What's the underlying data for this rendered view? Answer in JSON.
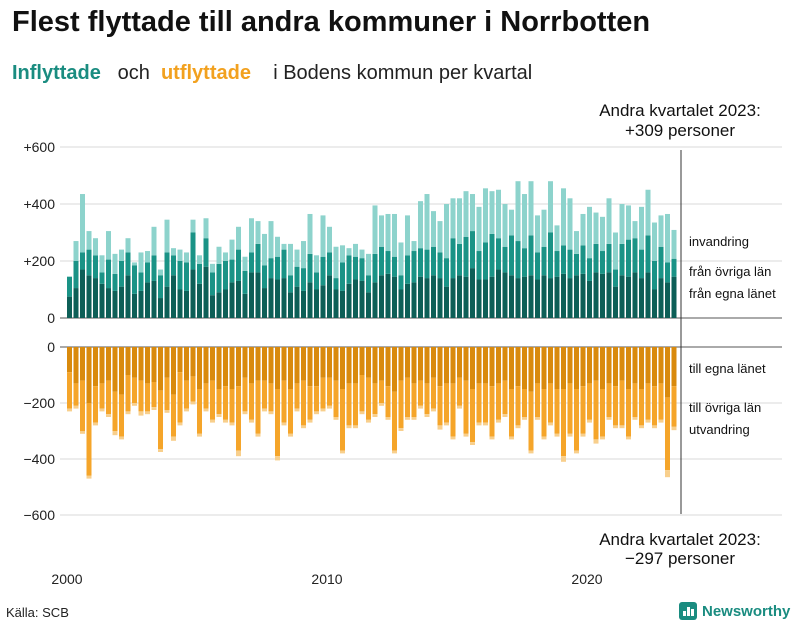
{
  "title": "Flest flyttade till andra kommuner i Norrbotten",
  "subtitle": {
    "in_word": "Inflyttade",
    "and_word": "och",
    "out_word": "utflyttade",
    "rest": "i Bodens  kommun  per  kvartal"
  },
  "source": "Källa: SCB",
  "brand": "Newsworthy",
  "colors": {
    "inflow_local": "#0d5f57",
    "inflow_other": "#1a9386",
    "inflow_immig": "#8dd3cc",
    "outflow_local": "#d98a0d",
    "outflow_other": "#f5a52a",
    "outflow_emig": "#f8cf8c"
  },
  "chart_data": {
    "type": "bar",
    "stacked": true,
    "x_tick_labels": [
      "2000",
      "2010",
      "2020"
    ],
    "first_year": 2000,
    "quarters": 94,
    "top_panel": {
      "y_tick_labels": [
        "+600",
        "+400",
        "+200",
        "0"
      ],
      "ylim": [
        0,
        600
      ],
      "annotation_line1": "Andra kvartalet 2023:",
      "annotation_line2": "+309 personer",
      "series_labels": [
        "invandring",
        "från övriga län",
        "från egna länet"
      ],
      "from_own_county": [
        75,
        105,
        170,
        150,
        140,
        120,
        105,
        95,
        110,
        150,
        85,
        95,
        125,
        130,
        70,
        110,
        150,
        100,
        95,
        170,
        120,
        180,
        80,
        90,
        100,
        125,
        130,
        85,
        160,
        160,
        105,
        140,
        135,
        140,
        90,
        110,
        95,
        125,
        100,
        115,
        150,
        100,
        95,
        120,
        135,
        130,
        90,
        125,
        150,
        155,
        145,
        100,
        120,
        125,
        145,
        140,
        150,
        140,
        110,
        140,
        150,
        145,
        175,
        135,
        135,
        145,
        170,
        160,
        150,
        140,
        145,
        150,
        135,
        150,
        140,
        145,
        155,
        140,
        150,
        155,
        130,
        160,
        155,
        160,
        110,
        150,
        145,
        160,
        140,
        160,
        100,
        140,
        125,
        145
      ],
      "from_other_counties": [
        70,
        95,
        60,
        90,
        80,
        40,
        100,
        60,
        90,
        80,
        100,
        65,
        70,
        90,
        80,
        120,
        70,
        100,
        100,
        130,
        70,
        100,
        80,
        100,
        100,
        80,
        110,
        80,
        70,
        100,
        80,
        70,
        80,
        100,
        60,
        70,
        80,
        100,
        60,
        100,
        80,
        40,
        100,
        100,
        80,
        80,
        60,
        100,
        100,
        80,
        70,
        50,
        100,
        110,
        100,
        100,
        100,
        90,
        100,
        140,
        110,
        140,
        130,
        100,
        130,
        150,
        110,
        90,
        140,
        130,
        100,
        140,
        95,
        100,
        160,
        90,
        100,
        100,
        75,
        100,
        80,
        100,
        80,
        100,
        60,
        110,
        130,
        120,
        100,
        130,
        100,
        110,
        70,
        63
      ],
      "immigration": [
        0,
        70,
        205,
        65,
        60,
        60,
        100,
        70,
        40,
        50,
        10,
        70,
        40,
        100,
        20,
        115,
        25,
        40,
        35,
        45,
        30,
        70,
        30,
        60,
        30,
        70,
        80,
        50,
        120,
        80,
        110,
        130,
        70,
        20,
        110,
        60,
        95,
        140,
        60,
        145,
        90,
        110,
        60,
        25,
        45,
        30,
        75,
        170,
        110,
        130,
        150,
        115,
        140,
        35,
        165,
        195,
        125,
        110,
        190,
        140,
        160,
        160,
        130,
        155,
        190,
        150,
        170,
        150,
        90,
        210,
        190,
        190,
        130,
        130,
        180,
        90,
        200,
        180,
        80,
        110,
        180,
        110,
        120,
        160,
        130,
        140,
        120,
        60,
        150,
        160,
        135,
        110,
        170,
        101
      ]
    },
    "bottom_panel": {
      "y_tick_labels": [
        "0",
        "−200",
        "−400",
        "−600"
      ],
      "ylim": [
        -600,
        0
      ],
      "annotation_line1": "Andra kvartalet 2023:",
      "annotation_line2": "−297 personer",
      "series_labels": [
        "till egna länet",
        "till övriga län",
        "utvandring"
      ],
      "to_own_county": [
        -90,
        -130,
        -120,
        -200,
        -140,
        -130,
        -120,
        -160,
        -170,
        -100,
        -110,
        -120,
        -130,
        -125,
        -155,
        -110,
        -170,
        -90,
        -120,
        -105,
        -150,
        -130,
        -120,
        -150,
        -140,
        -150,
        -140,
        -110,
        -130,
        -120,
        -120,
        -130,
        -150,
        -120,
        -150,
        -130,
        -120,
        -140,
        -140,
        -110,
        -110,
        -120,
        -150,
        -130,
        -130,
        -100,
        -110,
        -130,
        -120,
        -140,
        -160,
        -120,
        -110,
        -130,
        -120,
        -130,
        -110,
        -140,
        -130,
        -130,
        -110,
        -120,
        -150,
        -130,
        -130,
        -140,
        -130,
        -120,
        -150,
        -140,
        -150,
        -160,
        -130,
        -150,
        -130,
        -150,
        -150,
        -130,
        -150,
        -140,
        -130,
        -120,
        -150,
        -130,
        -140,
        -120,
        -150,
        -130,
        -150,
        -130,
        -140,
        -130,
        -180,
        -140
      ],
      "to_other_counties": [
        -130,
        -80,
        -180,
        -260,
        -130,
        -90,
        -120,
        -140,
        -150,
        -130,
        -90,
        -110,
        -100,
        -90,
        -210,
        -115,
        -150,
        -180,
        -100,
        -90,
        -160,
        -90,
        -140,
        -90,
        -120,
        -120,
        -230,
        -120,
        -130,
        -190,
        -100,
        -100,
        -240,
        -150,
        -160,
        -90,
        -160,
        -120,
        -90,
        -110,
        -100,
        -130,
        -220,
        -150,
        -150,
        -130,
        -150,
        -110,
        -80,
        -110,
        -210,
        -170,
        -140,
        -120,
        -90,
        -110,
        -110,
        -140,
        -140,
        -190,
        -100,
        -190,
        -190,
        -140,
        -140,
        -180,
        -130,
        -120,
        -170,
        -140,
        -100,
        -210,
        -120,
        -170,
        -140,
        -160,
        -240,
        -180,
        -220,
        -170,
        -130,
        -210,
        -170,
        -120,
        -140,
        -160,
        -170,
        -120,
        -130,
        -130,
        -140,
        -130,
        -260,
        -145
      ],
      "emigration": [
        -10,
        -10,
        -10,
        -10,
        -10,
        -10,
        -10,
        -15,
        -10,
        -10,
        -10,
        -15,
        -10,
        -10,
        -10,
        -10,
        -15,
        -10,
        -10,
        -10,
        -10,
        -10,
        -10,
        -10,
        -10,
        -10,
        -20,
        -10,
        -10,
        -10,
        -10,
        -10,
        -15,
        -10,
        -10,
        -10,
        -10,
        -10,
        -10,
        -10,
        -10,
        -10,
        -10,
        -10,
        -10,
        -10,
        -10,
        -10,
        -10,
        -10,
        -10,
        -10,
        -10,
        -10,
        -10,
        -10,
        -10,
        -15,
        -10,
        -10,
        -10,
        -10,
        -10,
        -10,
        -10,
        -10,
        -10,
        -10,
        -10,
        -10,
        -10,
        -10,
        -10,
        -10,
        -10,
        -10,
        -20,
        -10,
        -10,
        -10,
        -10,
        -15,
        -10,
        -10,
        -10,
        -10,
        -10,
        -10,
        -10,
        -10,
        -10,
        -10,
        -25,
        -12
      ]
    }
  }
}
